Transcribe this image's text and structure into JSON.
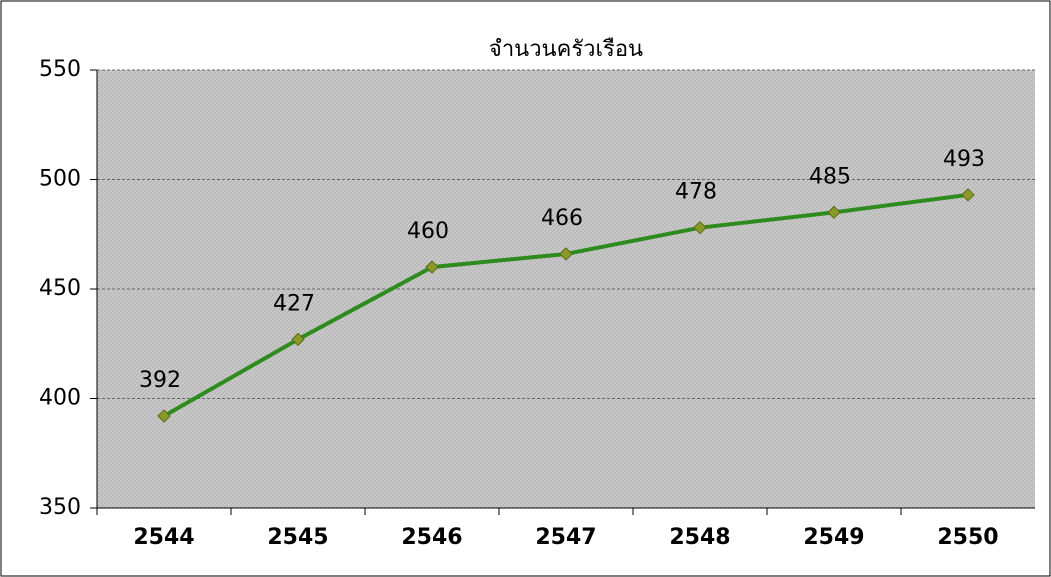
{
  "chart_data": {
    "type": "line",
    "title": "จำนวนครัวเรือน",
    "categories": [
      "2544",
      "2545",
      "2546",
      "2547",
      "2548",
      "2549",
      "2550"
    ],
    "series": [
      {
        "name": "จำนวนครัวเรือน",
        "color": "#2e8b1e",
        "values": [
          392,
          427,
          460,
          466,
          478,
          485,
          493
        ]
      }
    ],
    "ylim": [
      350,
      550
    ],
    "yticks": [
      350,
      400,
      450,
      500,
      550
    ],
    "grid": true
  }
}
